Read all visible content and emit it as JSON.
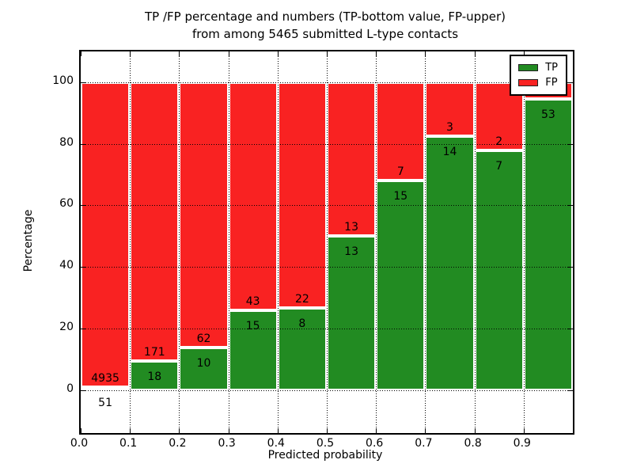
{
  "figure": {
    "title_line1": "TP /FP percentage and numbers (TP-bottom value, FP-upper)",
    "title_line2": "from among 5465 submitted L-type contacts",
    "xlabel": "Predicted probability",
    "ylabel": "Percentage"
  },
  "legend": {
    "items": [
      {
        "label": "TP",
        "color": "#228b22"
      },
      {
        "label": "FP",
        "color": "#f92222"
      }
    ]
  },
  "colors": {
    "tp_green": "#228b22",
    "fp_red": "#f92222",
    "frame": "#000000",
    "background": "#ffffff"
  },
  "chart_data": {
    "type": "bar",
    "stacked": true,
    "normalized_to_percent": true,
    "title": "TP /FP percentage and numbers (TP-bottom value, FP-upper) from among 5465 submitted L-type contacts",
    "xlabel": "Predicted probability",
    "ylabel": "Percentage",
    "total_contacts": 5465,
    "xlim": [
      0.0,
      1.0
    ],
    "ylim": [
      -14,
      110
    ],
    "x_tick_values": [
      0.0,
      0.1,
      0.2,
      0.3,
      0.4,
      0.5,
      0.6,
      0.7,
      0.8,
      0.9
    ],
    "x_tick_labels": [
      "0.0",
      "0.1",
      "0.2",
      "0.3",
      "0.4",
      "0.5",
      "0.6",
      "0.7",
      "0.8",
      "0.9"
    ],
    "y_tick_values": [
      0,
      20,
      40,
      60,
      80,
      100
    ],
    "y_tick_labels": [
      "0",
      "20",
      "40",
      "60",
      "80",
      "100"
    ],
    "grid": true,
    "legend_position": "upper right",
    "series": [
      {
        "name": "TP",
        "color": "#228b22"
      },
      {
        "name": "FP",
        "color": "#f92222"
      }
    ],
    "bins": [
      {
        "x0": 0.0,
        "x1": 0.1,
        "tp": 51,
        "fp": 4935,
        "tp_pct": 1.02,
        "tp_label": "51",
        "fp_label": "4935"
      },
      {
        "x0": 0.1,
        "x1": 0.2,
        "tp": 18,
        "fp": 171,
        "tp_pct": 9.52,
        "tp_label": "18",
        "fp_label": "171"
      },
      {
        "x0": 0.2,
        "x1": 0.3,
        "tp": 10,
        "fp": 62,
        "tp_pct": 13.89,
        "tp_label": "10",
        "fp_label": "62"
      },
      {
        "x0": 0.3,
        "x1": 0.4,
        "tp": 15,
        "fp": 43,
        "tp_pct": 25.86,
        "tp_label": "15",
        "fp_label": "43"
      },
      {
        "x0": 0.4,
        "x1": 0.5,
        "tp": 8,
        "fp": 22,
        "tp_pct": 26.67,
        "tp_label": "8",
        "fp_label": "22"
      },
      {
        "x0": 0.5,
        "x1": 0.6,
        "tp": 13,
        "fp": 13,
        "tp_pct": 50.0,
        "tp_label": "13",
        "fp_label": "13"
      },
      {
        "x0": 0.6,
        "x1": 0.7,
        "tp": 15,
        "fp": 7,
        "tp_pct": 68.18,
        "tp_label": "15",
        "fp_label": "7"
      },
      {
        "x0": 0.7,
        "x1": 0.8,
        "tp": 14,
        "fp": 3,
        "tp_pct": 82.35,
        "tp_label": "14",
        "fp_label": "3"
      },
      {
        "x0": 0.8,
        "x1": 0.9,
        "tp": 7,
        "fp": 2,
        "tp_pct": 77.78,
        "tp_label": "7",
        "fp_label": "2"
      },
      {
        "x0": 0.9,
        "x1": 1.0,
        "tp": 53,
        "fp": 3,
        "tp_pct": 94.64,
        "tp_label": "53",
        "fp_label": ""
      }
    ]
  }
}
